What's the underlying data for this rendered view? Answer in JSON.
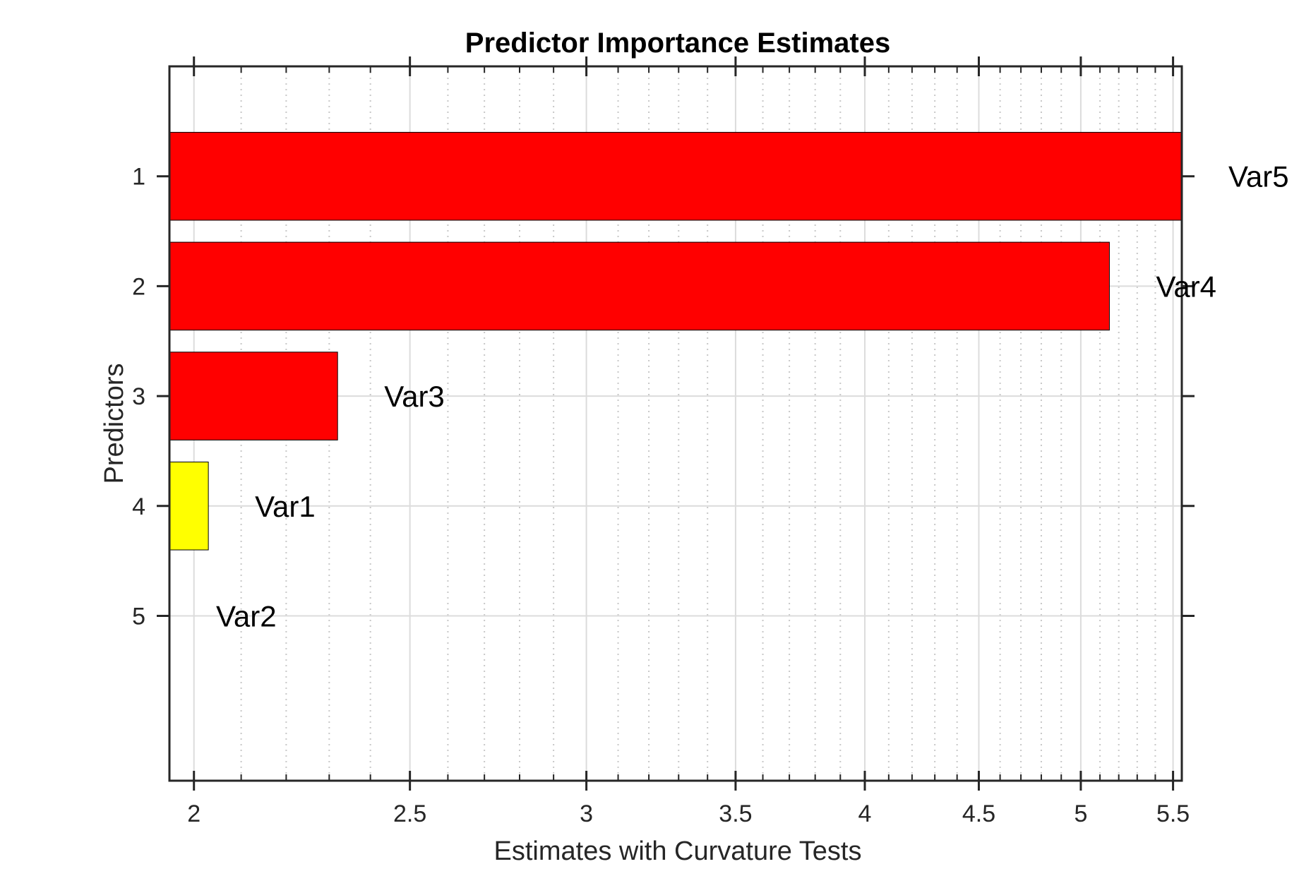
{
  "chart_data": {
    "type": "bar",
    "orientation": "horizontal",
    "title": "Predictor Importance Estimates",
    "xlabel": "Estimates with Curvature Tests",
    "ylabel": "Predictors",
    "x_scale": "log",
    "xlim": [
      1.95,
      5.55
    ],
    "x_ticks": [
      2,
      2.5,
      3,
      3.5,
      4,
      4.5,
      5,
      5.5
    ],
    "x_tick_labels": [
      "2",
      "2.5",
      "3",
      "3.5",
      "4",
      "4.5",
      "5",
      "5.5"
    ],
    "x_minor_ticks": [
      2.1,
      2.2,
      2.3,
      2.4,
      2.6,
      2.7,
      2.8,
      2.9,
      3.1,
      3.2,
      3.3,
      3.4,
      3.6,
      3.7,
      3.8,
      3.9,
      4.1,
      4.2,
      4.3,
      4.4,
      4.6,
      4.7,
      4.8,
      4.9,
      5.1,
      5.2,
      5.3,
      5.4
    ],
    "y_ticks": [
      1,
      2,
      3,
      4,
      5
    ],
    "y_tick_labels": [
      "1",
      "2",
      "3",
      "4",
      "5"
    ],
    "ylim": [
      0,
      6.5
    ],
    "y_reversed": true,
    "grid": true,
    "bars": [
      {
        "position": 1,
        "value": 5.55,
        "label": "Var5",
        "color": "#ff0000"
      },
      {
        "position": 2,
        "value": 5.15,
        "label": "Var4",
        "color": "#ff0000"
      },
      {
        "position": 3,
        "value": 2.32,
        "label": "Var3",
        "color": "#ff0000"
      },
      {
        "position": 4,
        "value": 2.03,
        "label": "Var1",
        "color": "#ffff00"
      },
      {
        "position": 5,
        "value": 1.95,
        "label": "Var2",
        "color": "#ffff00"
      }
    ]
  }
}
